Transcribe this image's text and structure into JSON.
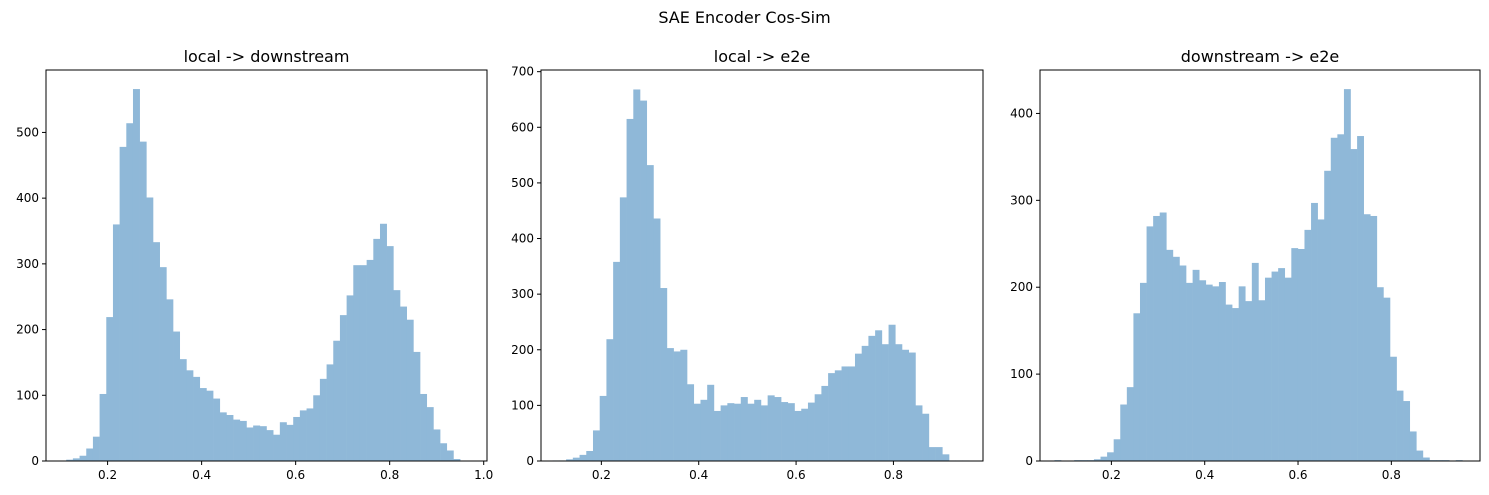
{
  "figure": {
    "title": "SAE Encoder Cos-Sim"
  },
  "colors": {
    "bar_fill": "#8fb8d8",
    "axis": "#000000"
  },
  "chart_data": [
    {
      "type": "bar",
      "title": "local -> downstream",
      "xlabel": "",
      "ylabel": "",
      "xlim": [
        0.069,
        1.007
      ],
      "ylim": [
        0,
        595
      ],
      "xticks": [
        0.2,
        0.4,
        0.6,
        0.8,
        1.0
      ],
      "xtick_labels": [
        "0.2",
        "0.4",
        "0.6",
        "0.8",
        "1.0"
      ],
      "yticks": [
        0,
        100,
        200,
        300,
        400,
        500
      ],
      "ytick_labels": [
        "0",
        "100",
        "200",
        "300",
        "400",
        "500"
      ],
      "grid": false,
      "bin_start": 0.112,
      "bin_width": 0.0142,
      "values": [
        2,
        4,
        8,
        19,
        37,
        102,
        219,
        360,
        478,
        514,
        566,
        486,
        401,
        333,
        295,
        246,
        197,
        155,
        138,
        128,
        111,
        107,
        95,
        74,
        70,
        63,
        61,
        51,
        54,
        53,
        47,
        40,
        59,
        55,
        67,
        77,
        80,
        100,
        125,
        147,
        183,
        222,
        252,
        298,
        298,
        306,
        338,
        361,
        327,
        260,
        235,
        215,
        166,
        102,
        82,
        48,
        27,
        16,
        3
      ]
    },
    {
      "type": "bar",
      "title": "local -> e2e",
      "xlabel": "",
      "ylabel": "",
      "xlim": [
        0.076,
        0.984
      ],
      "ylim": [
        0,
        703
      ],
      "xticks": [
        0.2,
        0.4,
        0.6,
        0.8
      ],
      "xtick_labels": [
        "0.2",
        "0.4",
        "0.6",
        "0.8"
      ],
      "yticks": [
        0,
        100,
        200,
        300,
        400,
        500,
        600,
        700
      ],
      "ytick_labels": [
        "0",
        "100",
        "200",
        "300",
        "400",
        "500",
        "600",
        "700"
      ],
      "grid": false,
      "bin_start": 0.1,
      "bin_width": 0.0138,
      "values": [
        1,
        1,
        3,
        6,
        11,
        18,
        55,
        117,
        219,
        358,
        474,
        615,
        668,
        648,
        532,
        436,
        311,
        203,
        197,
        200,
        138,
        103,
        110,
        137,
        90,
        100,
        104,
        103,
        115,
        103,
        110,
        100,
        118,
        115,
        106,
        104,
        90,
        94,
        105,
        120,
        135,
        158,
        163,
        170,
        170,
        193,
        207,
        225,
        235,
        210,
        245,
        210,
        200,
        195,
        100,
        85,
        25,
        25,
        12,
        1,
        1,
        1
      ]
    },
    {
      "type": "bar",
      "title": "downstream -> e2e",
      "xlabel": "",
      "ylabel": "",
      "xlim": [
        0.047,
        0.99
      ],
      "ylim": [
        0,
        450
      ],
      "xticks": [
        0.2,
        0.4,
        0.6,
        0.8
      ],
      "xtick_labels": [
        "0.2",
        "0.4",
        "0.6",
        "0.8"
      ],
      "yticks": [
        0,
        100,
        200,
        300,
        400
      ],
      "ytick_labels": [
        "0",
        "100",
        "200",
        "300",
        "400"
      ],
      "grid": false,
      "bin_start": 0.078,
      "bin_width": 0.0141,
      "values": [
        1,
        0,
        0,
        1,
        1,
        1,
        2,
        5,
        10,
        25,
        65,
        85,
        170,
        205,
        270,
        282,
        286,
        243,
        235,
        225,
        205,
        220,
        208,
        203,
        201,
        206,
        180,
        176,
        201,
        184,
        228,
        185,
        211,
        218,
        222,
        211,
        245,
        244,
        266,
        297,
        278,
        334,
        372,
        376,
        428,
        359,
        374,
        284,
        282,
        200,
        188,
        120,
        81,
        69,
        34,
        12,
        4,
        1,
        1,
        1,
        0,
        1
      ]
    }
  ]
}
